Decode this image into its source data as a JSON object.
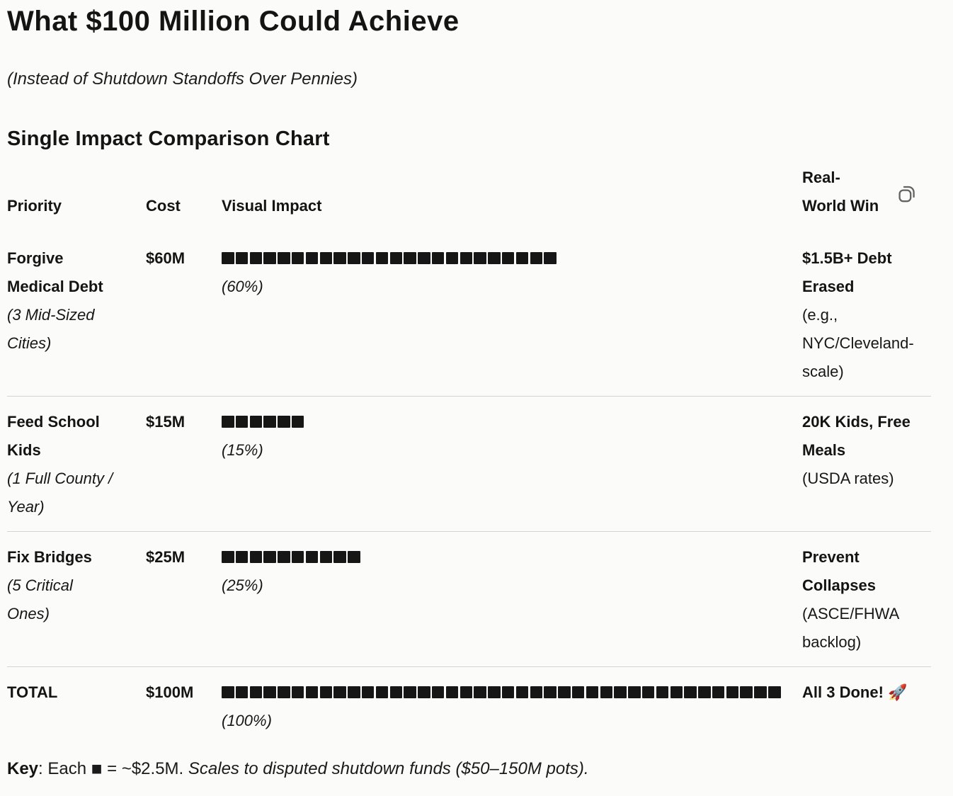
{
  "page": {
    "title": "What $100 Million Could Achieve",
    "subtitle": "(Instead of Shutdown Standoffs Over Pennies)",
    "section_heading": "Single Impact Comparison Chart"
  },
  "table": {
    "headers": {
      "priority": "Priority",
      "cost": "Cost",
      "impact": "Visual Impact",
      "win": "Real-\nWorld Win"
    },
    "rows": [
      {
        "priority": "Forgive\nMedical Debt",
        "priority_note": "(3 Mid-Sized\nCities)",
        "cost": "$60M",
        "impact_blocks": 24,
        "impact_pct": "(60%)",
        "win": "$1.5B+ Debt\nErased",
        "win_note": "(e.g.,\nNYC/Cleveland-\nscale)"
      },
      {
        "priority": "Feed School\nKids",
        "priority_note": "(1 Full County /\nYear)",
        "cost": "$15M",
        "impact_blocks": 6,
        "impact_pct": "(15%)",
        "win": "20K Kids, Free\nMeals",
        "win_note": "(USDA rates)"
      },
      {
        "priority": "Fix Bridges",
        "priority_note": "(5 Critical\nOnes)",
        "cost": "$25M",
        "impact_blocks": 10,
        "impact_pct": "(25%)",
        "win": "Prevent\nCollapses",
        "win_note": "(ASCE/FHWA\nbacklog)"
      },
      {
        "priority": "TOTAL",
        "cost": "$100M",
        "impact_blocks": 40,
        "impact_pct": "(100%)",
        "win": "All 3 Done! 🚀"
      }
    ]
  },
  "key": {
    "label": "Key",
    "before_square": ": Each ",
    "square": "■",
    "after_square": " = ~$2.5M. ",
    "italic_text": "Scales to disputed shutdown funds ($50–150M pots)."
  },
  "icons": {
    "copy": "copy-icon"
  },
  "colors": {
    "background": "#fbfbfa",
    "text": "#171717",
    "divider": "#d4d4d4",
    "block": "#161616",
    "icon_stroke": "#636363"
  },
  "chart_data": {
    "type": "bar",
    "title": "Single Impact Comparison Chart",
    "categories": [
      "Forgive Medical Debt",
      "Feed School Kids",
      "Fix Bridges",
      "TOTAL"
    ],
    "values_percent": [
      60,
      15,
      25,
      100
    ],
    "costs_millions_usd": [
      60,
      15,
      25,
      100
    ],
    "blocks_per_row": [
      24,
      6,
      10,
      40
    ],
    "unit_per_block": "~$2.5M",
    "xlabel": "Visual Impact",
    "ylabel": "",
    "legend": "Each ■ = ~$2.5M"
  }
}
